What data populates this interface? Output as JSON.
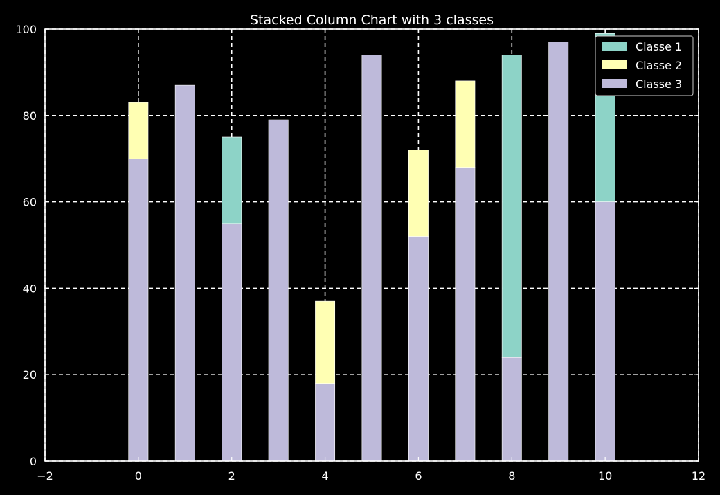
{
  "chart_data": {
    "type": "bar",
    "stacked": true,
    "title": "Stacked Column Chart with 3 classes",
    "xlabel": "",
    "ylabel": "",
    "x": [
      0,
      1,
      2,
      3,
      4,
      5,
      6,
      7,
      8,
      9,
      10
    ],
    "series": [
      {
        "name": "Classe 3",
        "color": "#bebada",
        "values": [
          70,
          87,
          55,
          79,
          18,
          94,
          52,
          68,
          24,
          97,
          60
        ]
      },
      {
        "name": "Classe 2",
        "color": "#ffffb3",
        "values": [
          13,
          0,
          0,
          0,
          19,
          0,
          20,
          20,
          0,
          0,
          0
        ]
      },
      {
        "name": "Classe 1",
        "color": "#8dd3c7",
        "values": [
          0,
          0,
          20,
          0,
          0,
          0,
          0,
          0,
          70,
          0,
          39
        ]
      }
    ],
    "legend_order": [
      "Classe 1",
      "Classe 2",
      "Classe 3"
    ],
    "xlim": [
      -2,
      12
    ],
    "ylim": [
      0,
      100
    ],
    "xticks": [
      "−2",
      "0",
      "2",
      "4",
      "6",
      "8",
      "10",
      "12"
    ],
    "yticks": [
      "0",
      "20",
      "40",
      "60",
      "80",
      "100"
    ],
    "grid": true,
    "legend_position": "top-right",
    "background": "#000000",
    "foreground": "#ffffff"
  }
}
